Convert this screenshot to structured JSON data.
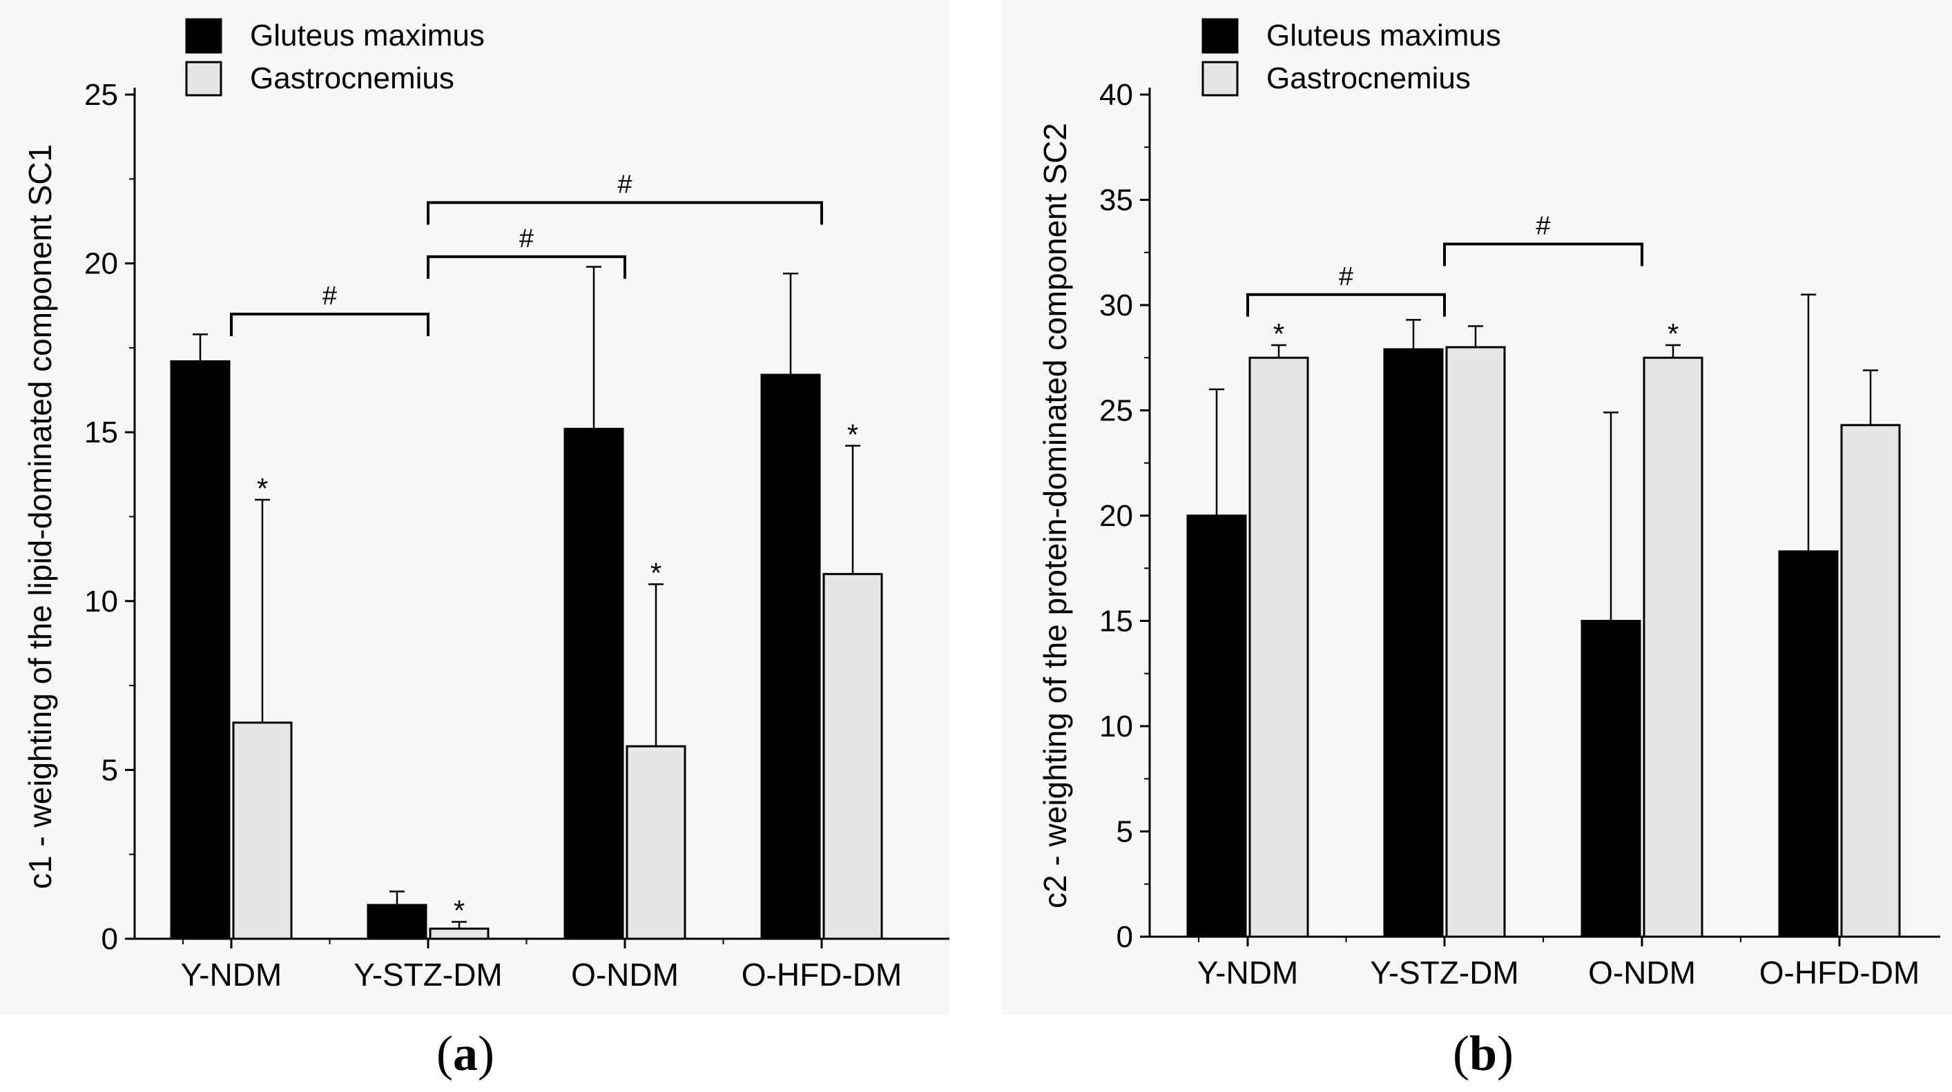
{
  "colors": {
    "gluteus": "#000000",
    "gastrocnemius": "#e6e6e6",
    "axis": "#000000",
    "panel_background": "#f7f7f7"
  },
  "chart_data": [
    {
      "type": "bar",
      "panel_label": "(a)",
      "title": "",
      "xlabel": "",
      "ylabel": "c1 - weighting of the lipid-dominated component SC1",
      "ylim": [
        0,
        25
      ],
      "yticks": [
        "0",
        "5",
        "10",
        "15",
        "20",
        "25"
      ],
      "grid": false,
      "legend_position": "top-left",
      "categories": [
        "Y-NDM",
        "Y-STZ-DM",
        "O-NDM",
        "O-HFD-DM"
      ],
      "series": [
        {
          "name": "Gluteus maximus",
          "color": "#000000",
          "values": [
            17.1,
            1.0,
            15.1,
            16.7
          ],
          "error": [
            0.8,
            0.4,
            4.8,
            3.0
          ],
          "markers": [
            "",
            "",
            "",
            ""
          ]
        },
        {
          "name": "Gastrocnemius",
          "color": "#e6e6e6",
          "values": [
            6.4,
            0.3,
            5.7,
            10.8
          ],
          "error": [
            6.6,
            0.2,
            4.8,
            3.8
          ],
          "markers": [
            "*",
            "*",
            "*",
            "*"
          ]
        }
      ],
      "brackets": [
        {
          "from": 0,
          "to": 1,
          "y": 18.5,
          "label": "#"
        },
        {
          "from": 1,
          "to": 2,
          "y": 20.2,
          "label": "#"
        },
        {
          "from": 1,
          "to": 3,
          "y": 21.8,
          "label": "#"
        }
      ]
    },
    {
      "type": "bar",
      "panel_label": "(b)",
      "title": "",
      "xlabel": "",
      "ylabel": "c2 - weighting of the protein-dominated component SC2",
      "ylim": [
        0,
        40
      ],
      "yticks": [
        "0",
        "5",
        "10",
        "15",
        "20",
        "25",
        "30",
        "35",
        "40"
      ],
      "grid": false,
      "legend_position": "top-left",
      "categories": [
        "Y-NDM",
        "Y-STZ-DM",
        "O-NDM",
        "O-HFD-DM"
      ],
      "series": [
        {
          "name": "Gluteus maximus",
          "color": "#000000",
          "values": [
            20.0,
            27.9,
            15.0,
            18.3
          ],
          "error": [
            6.0,
            1.4,
            9.9,
            12.2
          ],
          "markers": [
            "",
            "",
            "",
            ""
          ]
        },
        {
          "name": "Gastrocnemius",
          "color": "#e6e6e6",
          "values": [
            27.5,
            28.0,
            27.5,
            24.3
          ],
          "error": [
            0.6,
            1.0,
            0.6,
            2.6
          ],
          "markers": [
            "*",
            "",
            "*",
            ""
          ]
        }
      ],
      "brackets": [
        {
          "from": 0,
          "to": 1,
          "y": 30.5,
          "label": "#"
        },
        {
          "from": 1,
          "to": 2,
          "y": 32.9,
          "label": "#"
        }
      ]
    }
  ]
}
